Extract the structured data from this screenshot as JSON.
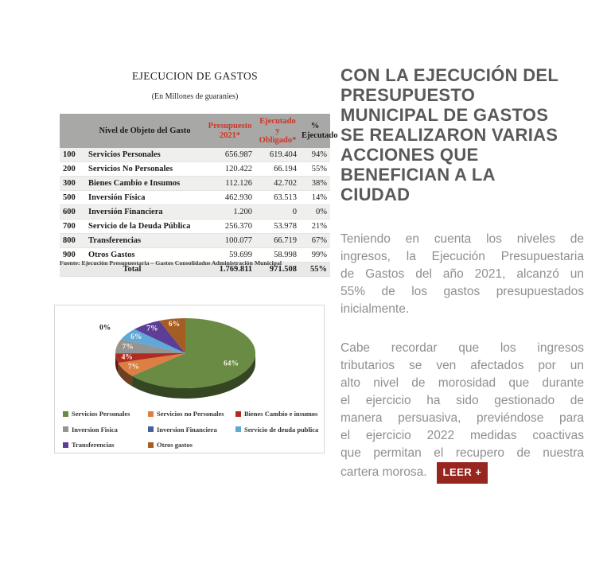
{
  "table": {
    "title": "EJECUCION DE GASTOS",
    "subtitle": "(En Millones de guaranies)",
    "columns": [
      {
        "label": "",
        "red": false
      },
      {
        "label": "Nivel de Objeto del Gasto",
        "red": false
      },
      {
        "label": "Presupuesto 2021*",
        "red": true
      },
      {
        "label": "Ejecutado y Obligado*",
        "red": true
      },
      {
        "label": "% Ejecutado",
        "red": false
      }
    ],
    "rows": [
      [
        "100",
        "Servicios Personales",
        "656.987",
        "619.404",
        "94%"
      ],
      [
        "200",
        "Servicios No Personales",
        "120.422",
        "66.194",
        "55%"
      ],
      [
        "300",
        "Bienes Cambio e Insumos",
        "112.126",
        "42.702",
        "38%"
      ],
      [
        "500",
        "Inversión Física",
        "462.930",
        "63.513",
        "14%"
      ],
      [
        "600",
        "Inversión Financiera",
        "1.200",
        "0",
        "0%"
      ],
      [
        "700",
        "Servicio de la Deuda Pública",
        "256.370",
        "53.978",
        "21%"
      ],
      [
        "800",
        "Transferencias",
        "100.077",
        "66.719",
        "67%"
      ],
      [
        "900",
        "Otros Gastos",
        "59.699",
        "58.998",
        "99%"
      ]
    ],
    "total": [
      "Total",
      "1.769.811",
      "971.508",
      "55%"
    ],
    "source": "Fuente: Ejecución Presupuestaria – Gastos Consolidados Administración Municipal"
  },
  "chart_data": {
    "type": "pie",
    "style": "3d",
    "labels": [
      "Servicios Personales",
      "Servicios no Personales",
      "Bienes Cambio e insumos",
      "Inversion Fisica",
      "Inversion Financiera",
      "Servicio de deuda publica",
      "Transferencias",
      "Otros gastos"
    ],
    "values": [
      619404,
      66194,
      42702,
      63513,
      0,
      53978,
      66719,
      58998
    ],
    "percent_labels": [
      "64%",
      "7%",
      "4%",
      "7%",
      "0%",
      "6%",
      "7%",
      "6%"
    ],
    "colors": [
      "#6a8b43",
      "#dd7e42",
      "#b02c21",
      "#949492",
      "#47619e",
      "#5fa8d8",
      "#5c3e97",
      "#a55d24"
    ],
    "legend_position": "bottom"
  },
  "right": {
    "headline_lines": [
      "CON LA EJECUCIÓN DEL",
      "PRESUPUESTO",
      "MUNICIPAL DE GASTOS",
      "SE REALIZARON VARIAS",
      "ACCIONES QUE",
      "BENEFICIAN A LA",
      "CIUDAD"
    ],
    "headline_color": "#59595b",
    "accent_color": "#96261e",
    "paragraphs": [
      {
        "lines": [
          "Teniendo en cuenta los niveles de",
          "ingresos, la Ejecución Presupuestaria",
          "de Gastos del año 2021, alcanzó un",
          "55% de los gastos presupuestados",
          "inicialmente."
        ]
      },
      {
        "lines": [
          "Cabe recordar que los ingresos",
          "tributarios se ven afectados por un",
          "alto nivel de morosidad que durante",
          "el ejercicio ha sido gestionado de",
          "manera persuasiva, previéndose para",
          "el ejercicio 2022 medidas coactivas",
          "que permitan el recupero de nuestra",
          "cartera morosa."
        ],
        "button": "LEER +"
      }
    ]
  }
}
